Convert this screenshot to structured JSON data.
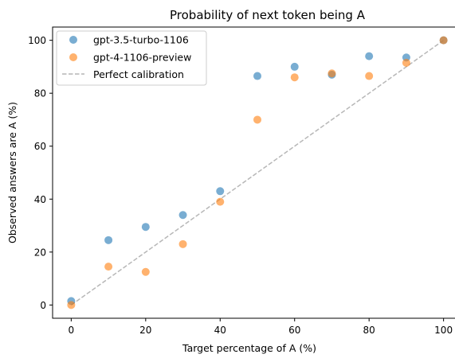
{
  "chart_data": {
    "type": "scatter",
    "title": "Probability of next token being A",
    "xlabel": "Target percentage of A (%)",
    "ylabel": "Observed answers are A (%)",
    "xlim": [
      -5,
      105
    ],
    "ylim": [
      -5,
      105
    ],
    "xticks": [
      0,
      20,
      40,
      60,
      80,
      100
    ],
    "yticks": [
      0,
      20,
      40,
      60,
      80,
      100
    ],
    "grid": false,
    "legend_position": "top-left",
    "series": [
      {
        "name": "gpt-3.5-turbo-1106",
        "color": "#1f77b4",
        "x": [
          0,
          10,
          20,
          30,
          40,
          50,
          60,
          70,
          80,
          90,
          100
        ],
        "y": [
          1.5,
          24.5,
          29.5,
          34,
          43,
          86.5,
          90,
          87,
          94,
          93.5,
          100
        ]
      },
      {
        "name": "gpt-4-1106-preview",
        "color": "#ff7f0e",
        "x": [
          0,
          10,
          20,
          30,
          40,
          50,
          60,
          70,
          80,
          90,
          100
        ],
        "y": [
          0,
          14.5,
          12.5,
          23,
          39,
          70,
          86,
          87.5,
          86.5,
          91.5,
          100
        ]
      }
    ],
    "reference_line": {
      "name": "Perfect calibration",
      "color": "#999999",
      "style": "dashed",
      "x": [
        0,
        100
      ],
      "y": [
        0,
        100
      ]
    }
  }
}
